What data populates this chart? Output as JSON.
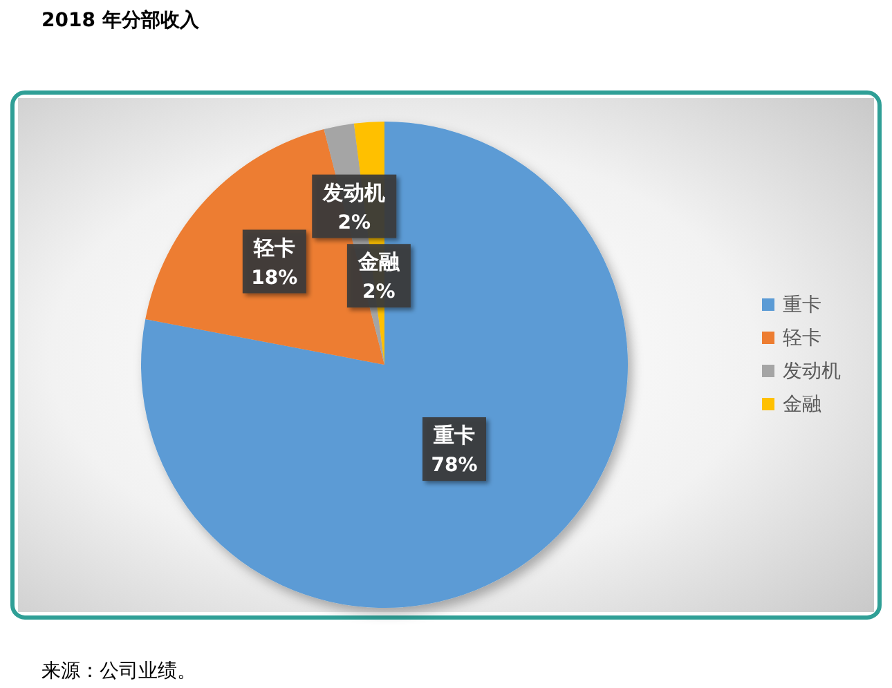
{
  "chart_data": {
    "type": "pie",
    "title": "2018 年分部收入",
    "categories": [
      "重卡",
      "轻卡",
      "发动机",
      "金融"
    ],
    "values": [
      78,
      18,
      2,
      2
    ],
    "value_labels": [
      "78%",
      "18%",
      "2%",
      "2%"
    ],
    "colors": [
      "#5b9bd5",
      "#ed7d31",
      "#a5a5a5",
      "#ffc000"
    ],
    "legend": "right",
    "annotations": [
      "来源：公司业绩。"
    ]
  }
}
